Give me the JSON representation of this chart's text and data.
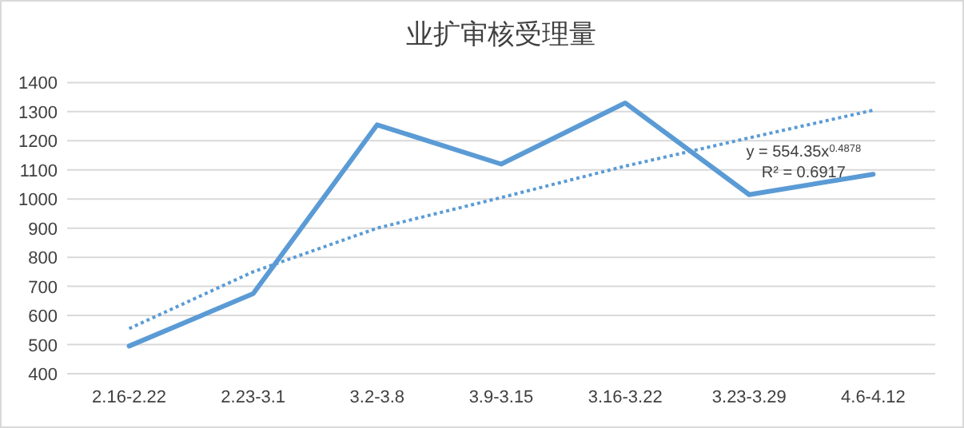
{
  "chart_data": {
    "type": "line",
    "title": "业扩审核受理量",
    "categories": [
      "2.16-2.22",
      "2.23-3.1",
      "3.2-3.8",
      "3.9-3.15",
      "3.16-3.22",
      "3.23-3.29",
      "4.6-4.12"
    ],
    "series": [
      {
        "type": "line",
        "color": "#5b9bd5",
        "line_style": "solid",
        "values": [
          495,
          675,
          1255,
          1120,
          1330,
          1015,
          1085
        ]
      },
      {
        "type": "line",
        "color": "#5b9bd5",
        "line_style": "dotted",
        "values": [
          555,
          750,
          900,
          1005,
          1113,
          1210,
          1305
        ]
      }
    ],
    "ylim": [
      400,
      1400
    ],
    "yticks": [
      400,
      500,
      600,
      700,
      800,
      900,
      1000,
      1100,
      1200,
      1300,
      1400
    ],
    "grid": "y",
    "annotations": [
      "y = 554.35x$^{0.4878}$",
      "R² = 0.6917"
    ]
  }
}
